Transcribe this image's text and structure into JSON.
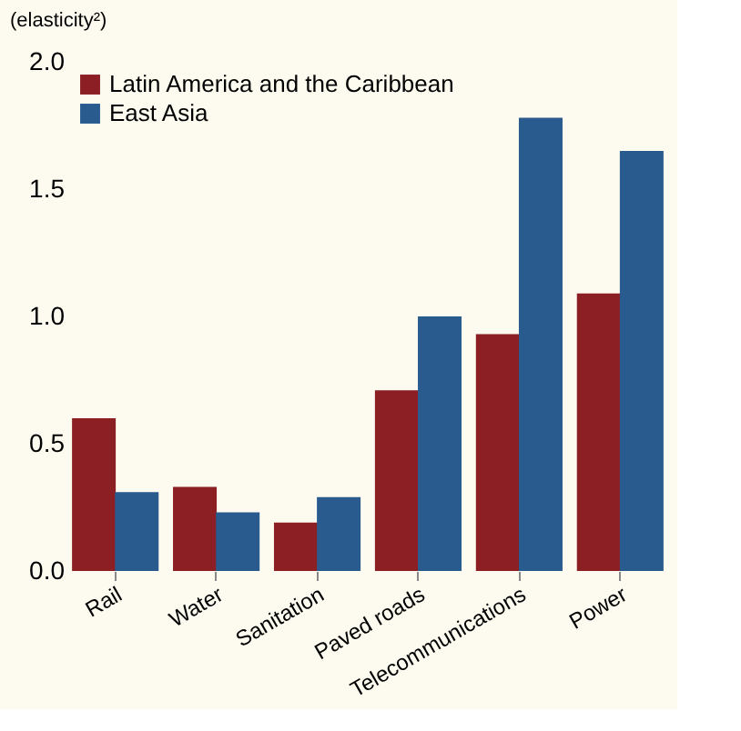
{
  "chart_data": {
    "type": "bar",
    "ylabel": "(elasticity²)",
    "categories": [
      "Rail",
      "Water",
      "Sanitation",
      "Paved roads",
      "Telecommunications",
      "Power"
    ],
    "series": [
      {
        "name": "Latin America and the Caribbean",
        "color": "#8b1f24",
        "values": [
          0.6,
          0.33,
          0.19,
          0.71,
          0.93,
          1.09
        ]
      },
      {
        "name": "East Asia",
        "color": "#2a5b8e",
        "values": [
          0.31,
          0.23,
          0.29,
          1.0,
          1.78,
          1.65
        ]
      }
    ],
    "ylim": [
      0,
      2.0
    ],
    "yticks": [
      {
        "value": 0,
        "label": "0.0"
      },
      0.5,
      {
        "value": 1,
        "label": "1.0"
      },
      1.5,
      {
        "value": 2,
        "label": "2.0"
      }
    ],
    "grid": false,
    "legend": "top left"
  }
}
